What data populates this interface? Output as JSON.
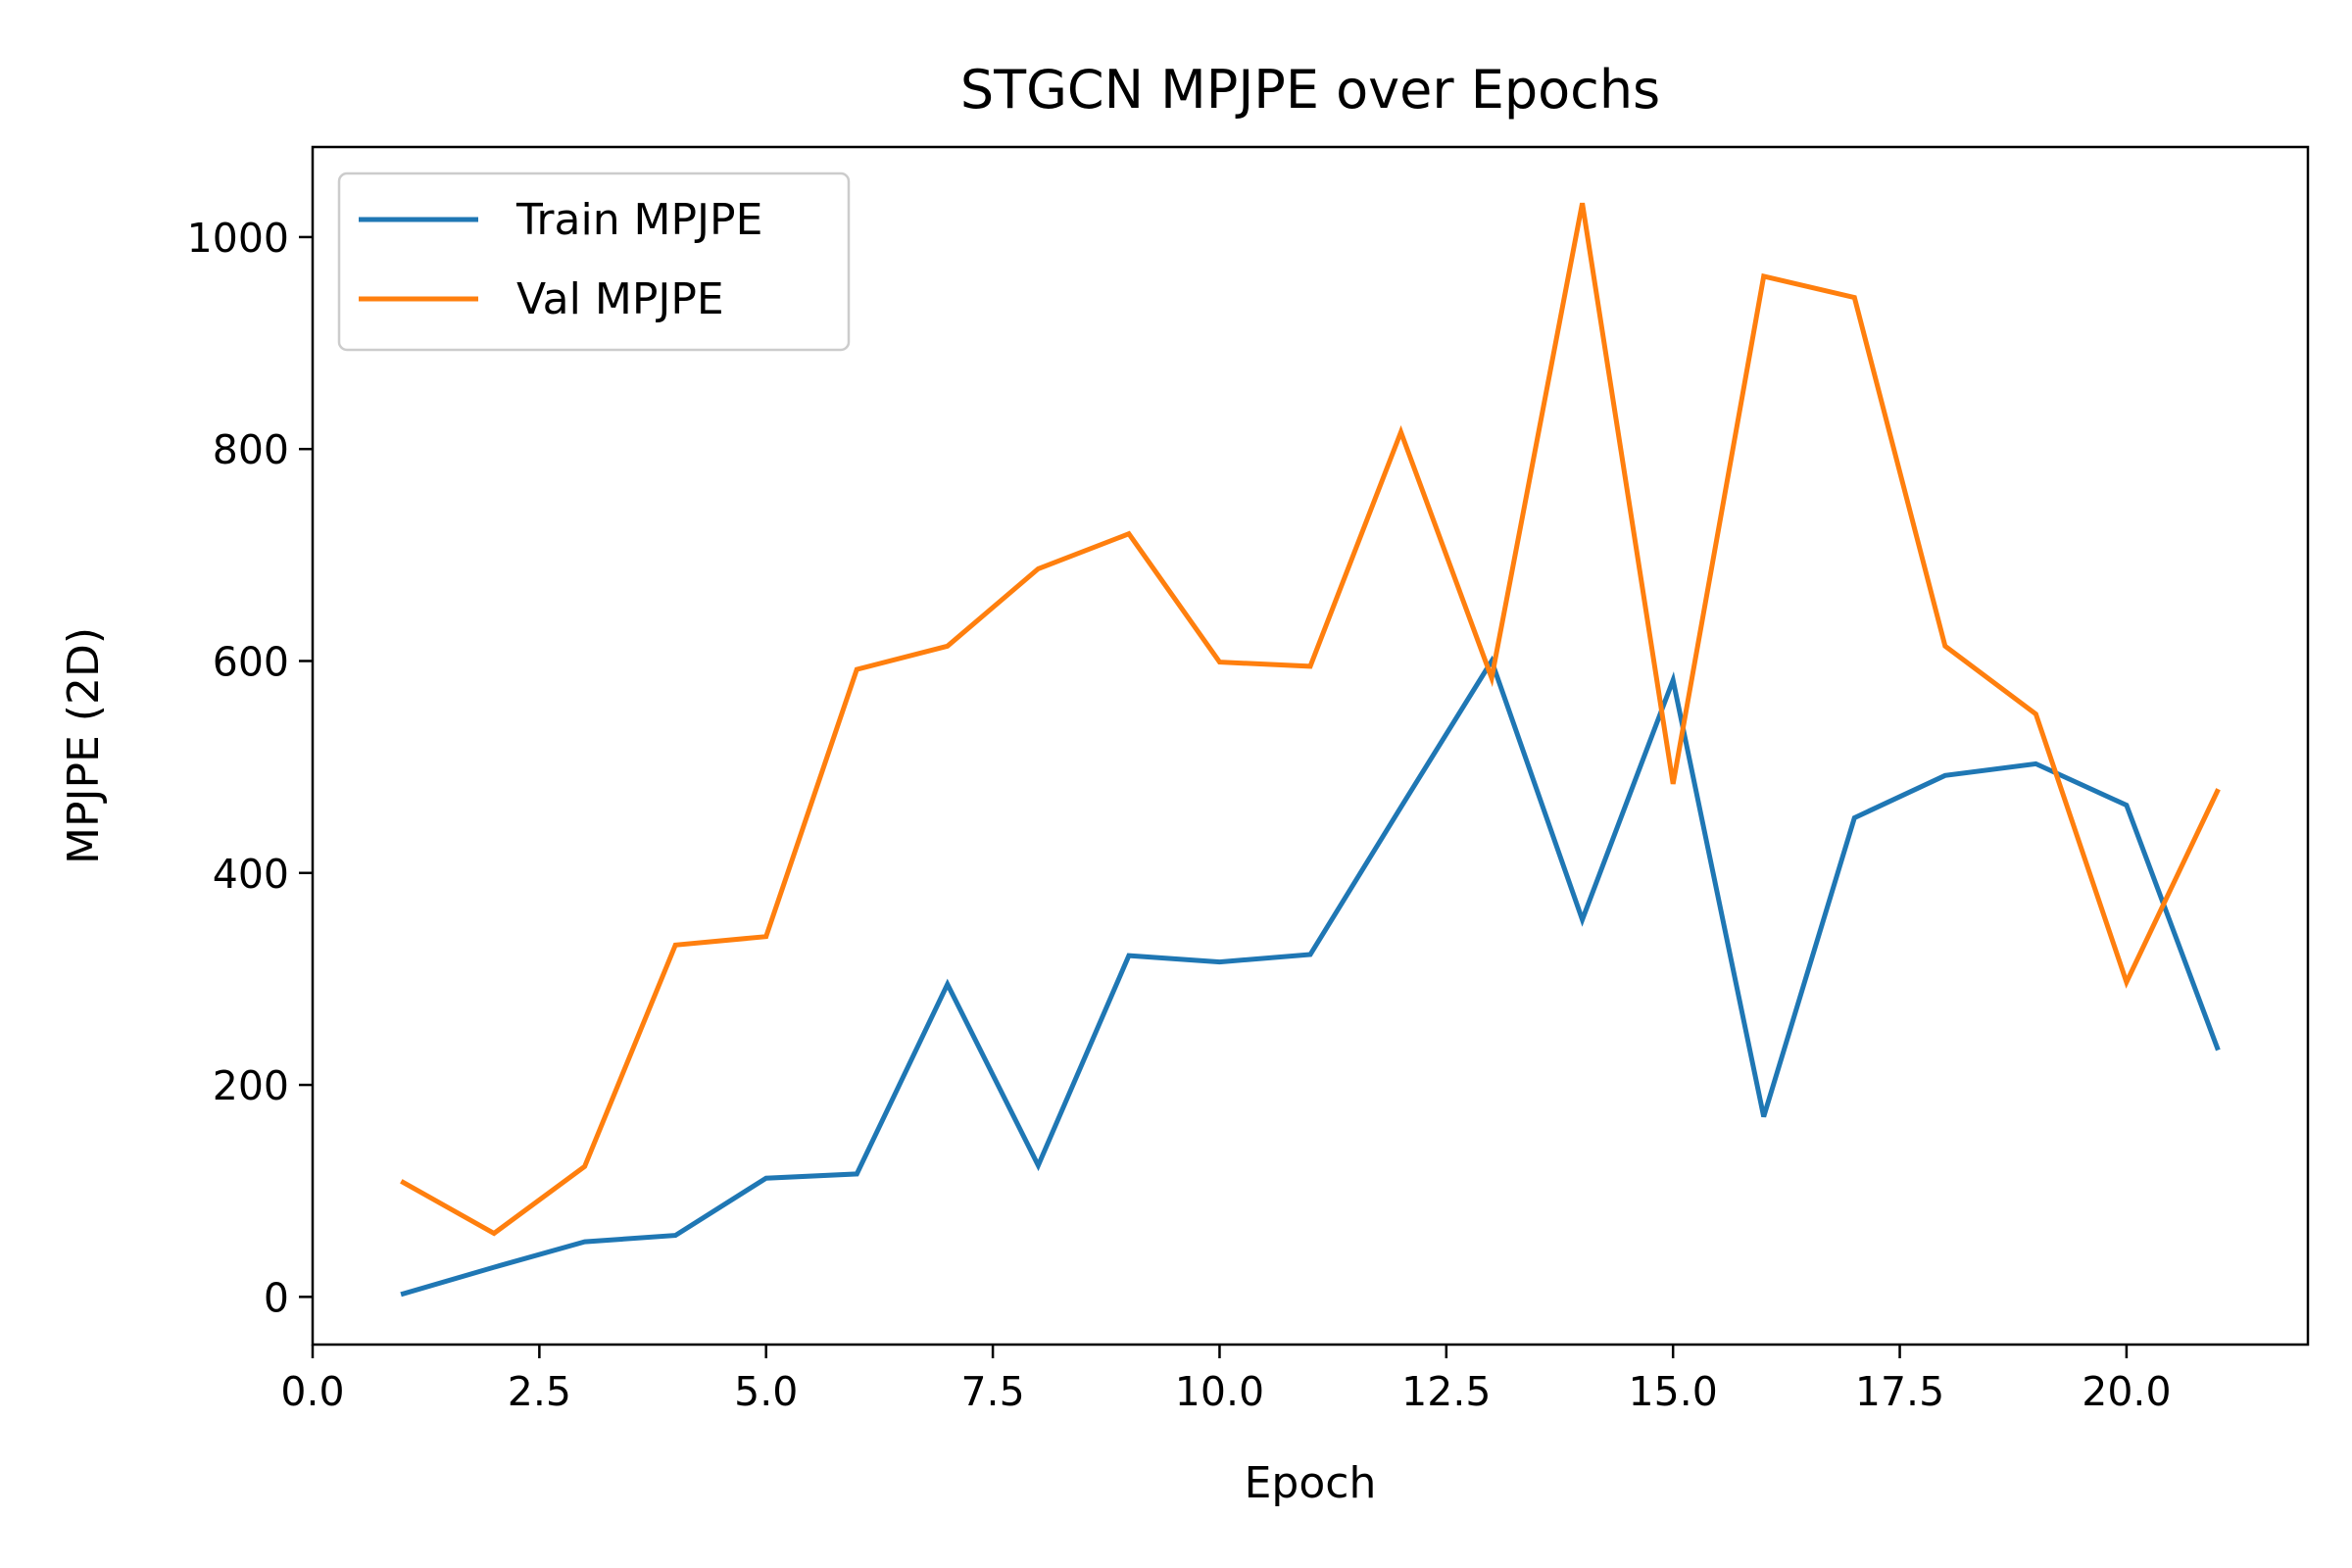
{
  "chart_data": {
    "type": "line",
    "title": "STGCN MPJPE over Epochs",
    "xlabel": "Epoch",
    "ylabel": "MPJPE (2D)",
    "xlim": [
      0,
      22
    ],
    "ylim": [
      -45,
      1085
    ],
    "xticks": [
      0.0,
      2.5,
      5.0,
      7.5,
      10.0,
      12.5,
      15.0,
      17.5,
      20.0
    ],
    "xtick_labels": [
      "0.0",
      "2.5",
      "5.0",
      "7.5",
      "10.0",
      "12.5",
      "15.0",
      "17.5",
      "20.0"
    ],
    "yticks": [
      0,
      200,
      400,
      600,
      800,
      1000
    ],
    "ytick_labels": [
      "0",
      "200",
      "400",
      "600",
      "800",
      "1000"
    ],
    "grid": false,
    "legend_position": "top-left",
    "x": [
      1,
      2,
      3,
      4,
      5,
      6,
      7,
      8,
      9,
      10,
      11,
      12,
      13,
      14,
      15,
      16,
      17,
      18,
      19,
      20,
      21
    ],
    "series": [
      {
        "name": "Train MPJPE",
        "color": "#1f77b4",
        "values": [
          3,
          28,
          52,
          58,
          112,
          116,
          295,
          124,
          322,
          316,
          323,
          462,
          600,
          356,
          582,
          170,
          452,
          492,
          503,
          464,
          235
        ]
      },
      {
        "name": "Val MPJPE",
        "color": "#ff7f0e",
        "values": [
          108,
          60,
          123,
          332,
          340,
          592,
          614,
          687,
          720,
          599,
          595,
          816,
          584,
          1032,
          484,
          963,
          943,
          614,
          550,
          297,
          477
        ]
      }
    ]
  }
}
